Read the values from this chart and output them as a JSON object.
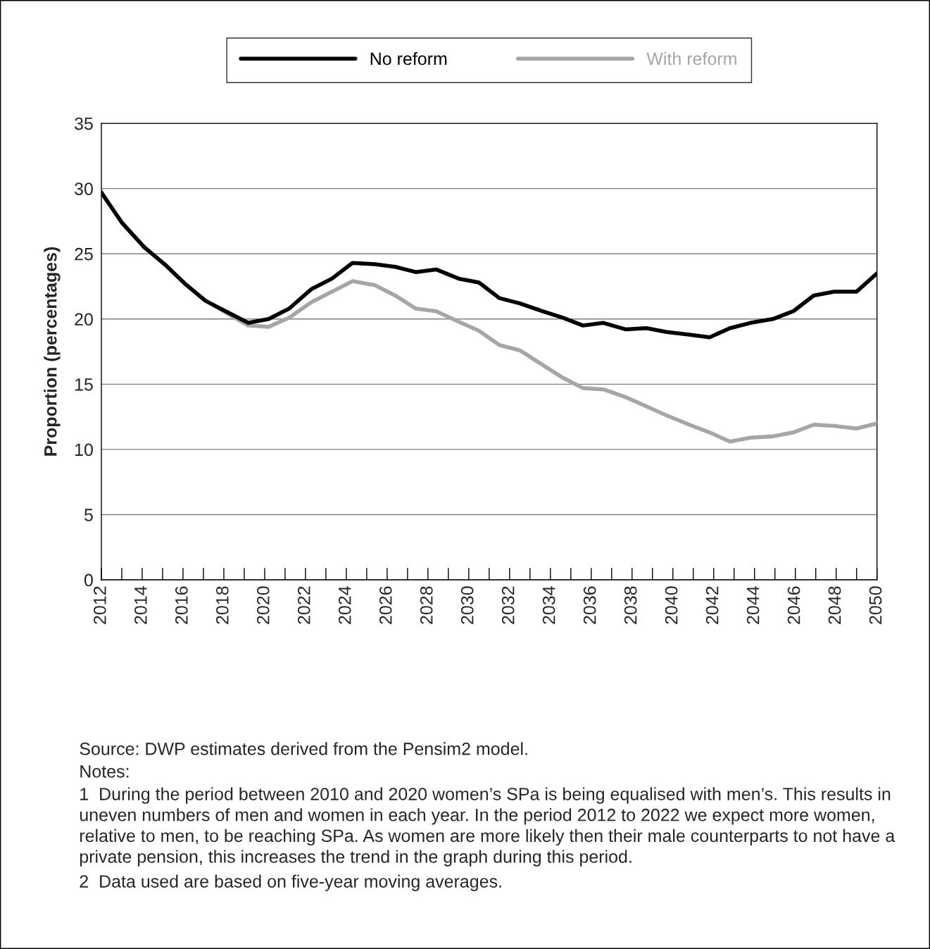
{
  "chart_data": {
    "type": "line",
    "ylabel": "Proportion (percentages)",
    "x": [
      2012,
      2013.0,
      2014.1,
      2015.1,
      2016.1,
      2017.1,
      2018.2,
      2019.2,
      2020.2,
      2021.2,
      2022.3,
      2023.3,
      2024.3,
      2025.4,
      2026.4,
      2027.4,
      2028.4,
      2029.5,
      2030.5,
      2031.5,
      2032.5,
      2033.6,
      2034.6,
      2035.6,
      2036.6,
      2037.7,
      2038.7,
      2039.7,
      2040.8,
      2041.8,
      2042.8,
      2043.8,
      2044.9,
      2045.9,
      2046.9,
      2047.9,
      2049.0,
      2050
    ],
    "series": [
      {
        "name": "No reform",
        "color": "#000000",
        "values": [
          29.7,
          27.4,
          25.5,
          24.2,
          22.7,
          21.4,
          20.5,
          19.7,
          20.0,
          20.8,
          22.3,
          23.1,
          24.3,
          24.2,
          24.0,
          23.6,
          23.8,
          23.1,
          22.8,
          21.6,
          21.2,
          20.6,
          20.1,
          19.5,
          19.7,
          19.2,
          19.3,
          19.0,
          18.8,
          18.6,
          19.3,
          19.7,
          20.0,
          20.6,
          21.8,
          22.1,
          22.1,
          23.5
        ]
      },
      {
        "name": "With reform",
        "color": "#a6a6a9",
        "values": [
          29.7,
          27.4,
          25.5,
          24.2,
          22.7,
          21.4,
          20.4,
          19.5,
          19.4,
          20.1,
          21.3,
          22.1,
          22.9,
          22.6,
          21.8,
          20.8,
          20.6,
          19.8,
          19.1,
          18.0,
          17.6,
          16.5,
          15.5,
          14.7,
          14.6,
          14.0,
          13.3,
          12.6,
          11.9,
          11.3,
          10.6,
          10.9,
          11.0,
          11.3,
          11.9,
          11.8,
          11.6,
          12.0
        ]
      }
    ],
    "xlim": [
      2012,
      2050
    ],
    "xticks": [
      2012,
      2014,
      2016,
      2018,
      2020,
      2022,
      2024,
      2026,
      2028,
      2030,
      2032,
      2034,
      2036,
      2038,
      2040,
      2042,
      2044,
      2046,
      2048,
      2050
    ],
    "ylim": [
      0,
      35
    ],
    "yticks": [
      0,
      5,
      10,
      15,
      20,
      25,
      30,
      35
    ],
    "grid": "y",
    "legend": "top",
    "marker": "none",
    "line_style": "solid",
    "annotations": [
      "Source: DWP estimates derived from the Pensim2 model.",
      "Notes:",
      "1  During the period between 2010 and 2020 women’s SPa is being equalised with men’s. This results in uneven numbers of men and women in each year. In the period 2012 to 2022 we expect more women, relative to men, to be reaching SPa. As women are more likely then their male counterparts to not have a private pension, this increases the trend in the graph during this period.",
      "2  Data used are based on five-year moving averages."
    ]
  }
}
